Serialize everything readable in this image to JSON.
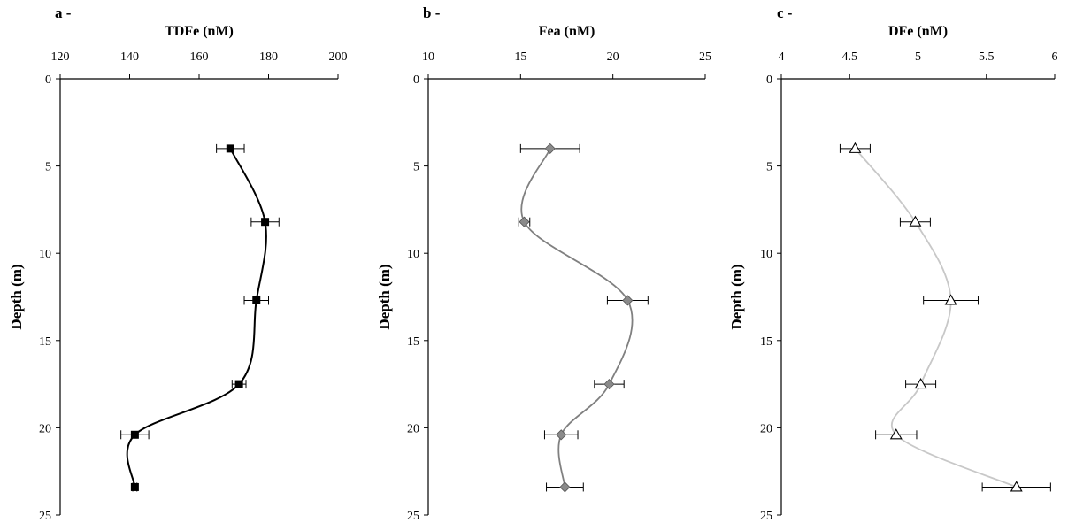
{
  "chart_data": [
    {
      "type": "line",
      "panel_label": "a -",
      "title": "TDFe (nM)",
      "xlabel": "TDFe (nM)",
      "ylabel": "Depth (m)",
      "xlim": [
        120,
        200
      ],
      "ylim": [
        0,
        25
      ],
      "y_reversed": true,
      "x_axis_position": "top",
      "xticks": [
        120,
        140,
        160,
        180,
        200
      ],
      "yticks": [
        0,
        5,
        10,
        15,
        20,
        25
      ],
      "grid": false,
      "legend": "none",
      "marker": "square",
      "color": "#000000",
      "marker_fill": "#000000",
      "series": [
        {
          "points": [
            {
              "x": 169,
              "y": 4.0,
              "xerr": 4
            },
            {
              "x": 179,
              "y": 8.2,
              "xerr": 4
            },
            {
              "x": 176.5,
              "y": 12.7,
              "xerr": 3.5
            },
            {
              "x": 171.5,
              "y": 17.5,
              "xerr": 2
            },
            {
              "x": 141.5,
              "y": 20.4,
              "xerr": 4
            },
            {
              "x": 141.5,
              "y": 23.4,
              "xerr": 0.6
            }
          ]
        }
      ]
    },
    {
      "type": "line",
      "panel_label": "b -",
      "title": "Fea (nM)",
      "xlabel": "Fea (nM)",
      "ylabel": "Depth (m)",
      "xlim": [
        10,
        25
      ],
      "ylim": [
        0,
        25
      ],
      "y_reversed": true,
      "x_axis_position": "top",
      "xticks": [
        10,
        15,
        20,
        25
      ],
      "yticks": [
        0,
        5,
        10,
        15,
        20,
        25
      ],
      "grid": false,
      "legend": "none",
      "marker": "diamond",
      "color": "#808080",
      "marker_fill": "#8a8a8a",
      "series": [
        {
          "points": [
            {
              "x": 16.6,
              "y": 4.0,
              "xerr": 1.6
            },
            {
              "x": 15.2,
              "y": 8.2,
              "xerr": 0.3
            },
            {
              "x": 20.8,
              "y": 12.7,
              "xerr": 1.1
            },
            {
              "x": 19.8,
              "y": 17.5,
              "xerr": 0.8
            },
            {
              "x": 17.2,
              "y": 20.4,
              "xerr": 0.9
            },
            {
              "x": 17.4,
              "y": 23.4,
              "xerr": 1.0
            }
          ]
        }
      ]
    },
    {
      "type": "line",
      "panel_label": "c -",
      "title": "DFe (nM)",
      "xlabel": "DFe (nM)",
      "ylabel": "Depth (m)",
      "xlim": [
        4,
        6
      ],
      "ylim": [
        0,
        25
      ],
      "y_reversed": true,
      "x_axis_position": "top",
      "xticks": [
        "4",
        "4.5",
        "5",
        "5.5",
        "6"
      ],
      "yticks": [
        0,
        5,
        10,
        15,
        20,
        25
      ],
      "grid": false,
      "legend": "none",
      "marker": "triangle",
      "color": "#c8c8c8",
      "marker_fill": "#ffffff",
      "series": [
        {
          "points": [
            {
              "x": 4.54,
              "y": 4.0,
              "xerr": 0.11
            },
            {
              "x": 4.98,
              "y": 8.2,
              "xerr": 0.11
            },
            {
              "x": 5.24,
              "y": 12.7,
              "xerr": 0.2
            },
            {
              "x": 5.02,
              "y": 17.5,
              "xerr": 0.11
            },
            {
              "x": 4.84,
              "y": 20.4,
              "xerr": 0.15
            },
            {
              "x": 5.72,
              "y": 23.4,
              "xerr": 0.25
            }
          ]
        }
      ]
    }
  ]
}
